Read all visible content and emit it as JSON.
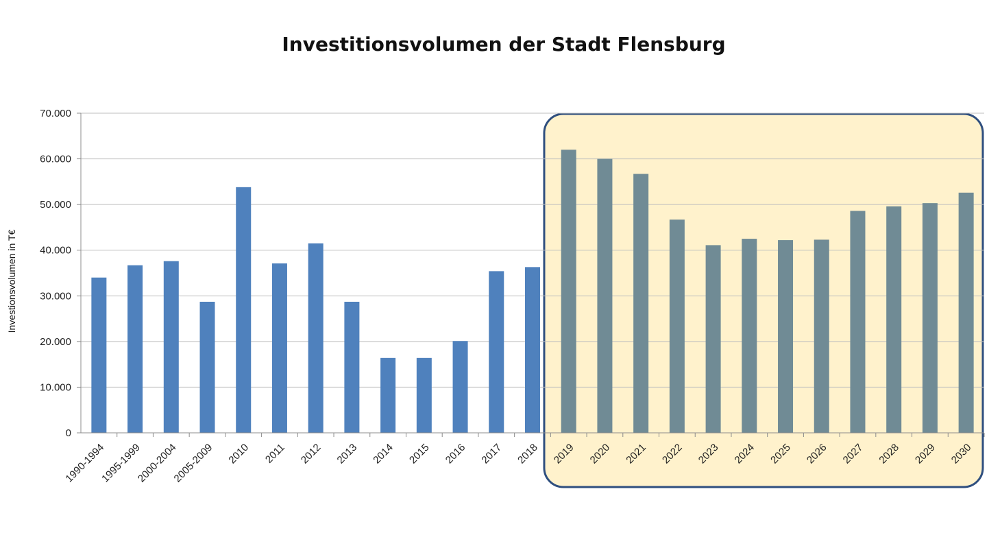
{
  "chart_data": {
    "type": "bar",
    "title": "Investitionsvolumen der Stadt Flensburg",
    "ylabel": "Investionsvolumen in T€",
    "xlabel": "",
    "ylim": [
      0,
      70000
    ],
    "yticks": [
      0,
      10000,
      20000,
      30000,
      40000,
      50000,
      60000,
      70000
    ],
    "ytick_labels": [
      "0",
      "10.000",
      "20.000",
      "30.000",
      "40.000",
      "50.000",
      "60.000",
      "70.000"
    ],
    "grid": true,
    "categories": [
      "1990-1994",
      "1995-1999",
      "2000-2004",
      "2005-2009",
      "2010",
      "2011",
      "2012",
      "2013",
      "2014",
      "2015",
      "2016",
      "2017",
      "2018",
      "2019",
      "2020",
      "2021",
      "2022",
      "2023",
      "2024",
      "2025",
      "2026",
      "2027",
      "2028",
      "2029",
      "2030"
    ],
    "values": [
      34000,
      36700,
      37600,
      28700,
      53800,
      37100,
      41500,
      28700,
      16400,
      16400,
      20100,
      35400,
      36300,
      62000,
      60000,
      56700,
      46700,
      41100,
      42500,
      42200,
      42300,
      48600,
      49600,
      50300,
      52600
    ],
    "highlight": {
      "from_category": "2019",
      "to_category": "2030",
      "fill": "#FFF2CC",
      "border": "#2F4F7F"
    },
    "colors": {
      "actual": "#4F81BD",
      "plan": "#708B95",
      "grid": "#BFBFBF",
      "axis": "#8C8C8C"
    }
  }
}
